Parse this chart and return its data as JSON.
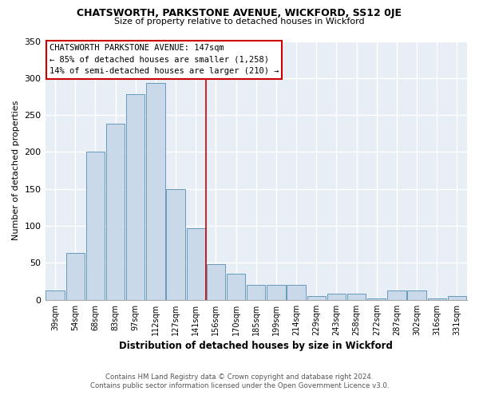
{
  "title": "CHATSWORTH, PARKSTONE AVENUE, WICKFORD, SS12 0JE",
  "subtitle": "Size of property relative to detached houses in Wickford",
  "xlabel": "Distribution of detached houses by size in Wickford",
  "ylabel": "Number of detached properties",
  "categories": [
    "39sqm",
    "54sqm",
    "68sqm",
    "83sqm",
    "97sqm",
    "112sqm",
    "127sqm",
    "141sqm",
    "156sqm",
    "170sqm",
    "185sqm",
    "199sqm",
    "214sqm",
    "229sqm",
    "243sqm",
    "258sqm",
    "272sqm",
    "287sqm",
    "302sqm",
    "316sqm",
    "331sqm"
  ],
  "values": [
    13,
    63,
    200,
    238,
    278,
    293,
    150,
    97,
    48,
    35,
    20,
    20,
    20,
    5,
    8,
    8,
    2,
    13,
    13,
    2,
    5
  ],
  "bar_color": "#c9d9ea",
  "bar_edge_color": "#6699bb",
  "plot_bg_color": "#e8eef5",
  "fig_bg_color": "#ffffff",
  "grid_color": "#ffffff",
  "vline_color": "#cc0000",
  "annotation_text": "CHATSWORTH PARKSTONE AVENUE: 147sqm\n← 85% of detached houses are smaller (1,258)\n14% of semi-detached houses are larger (210) →",
  "annotation_box_facecolor": "#ffffff",
  "annotation_box_edgecolor": "#cc0000",
  "ylim": [
    0,
    350
  ],
  "yticks": [
    0,
    50,
    100,
    150,
    200,
    250,
    300,
    350
  ],
  "vline_pos": 7.5,
  "footer_text": "Contains HM Land Registry data © Crown copyright and database right 2024.\nContains public sector information licensed under the Open Government Licence v3.0."
}
